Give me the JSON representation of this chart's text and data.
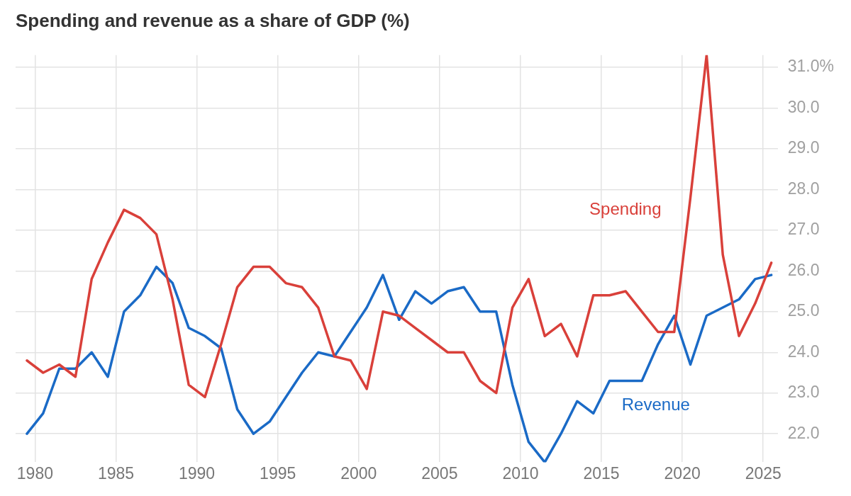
{
  "chart_data": {
    "type": "line",
    "title": "Spending and revenue as a share of GDP (%)",
    "x": [
      1979.5,
      1980.5,
      1981.5,
      1982.5,
      1983.5,
      1984.5,
      1985.5,
      1986.5,
      1987.5,
      1988.5,
      1989.5,
      1990.5,
      1991.5,
      1992.5,
      1993.5,
      1994.5,
      1995.5,
      1996.5,
      1997.5,
      1998.5,
      1999.5,
      2000.5,
      2001.5,
      2002.5,
      2003.5,
      2004.5,
      2005.5,
      2006.5,
      2007.5,
      2008.5,
      2009.5,
      2010.5,
      2011.5,
      2012.5,
      2013.5,
      2014.5,
      2015.5,
      2016.5,
      2017.5,
      2018.5,
      2019.5,
      2020.5,
      2021.5,
      2022.5,
      2023.5,
      2024.5,
      2025.5
    ],
    "series": [
      {
        "name": "Spending",
        "color": "#d9403a",
        "values": [
          23.8,
          23.5,
          23.7,
          23.4,
          25.8,
          26.7,
          27.5,
          27.3,
          26.9,
          25.3,
          23.2,
          22.9,
          24.2,
          25.6,
          26.1,
          26.1,
          25.7,
          25.6,
          25.1,
          23.9,
          23.8,
          23.1,
          25.0,
          24.9,
          24.6,
          24.3,
          24.0,
          24.0,
          23.3,
          23.0,
          25.1,
          25.8,
          24.4,
          24.7,
          23.9,
          25.4,
          25.4,
          25.5,
          25.0,
          24.5,
          24.5,
          27.8,
          31.3,
          26.4,
          24.4,
          25.2,
          26.2
        ]
      },
      {
        "name": "Revenue",
        "color": "#1a6ac6",
        "values": [
          22.0,
          22.5,
          23.6,
          23.6,
          24.0,
          23.4,
          25.0,
          25.4,
          26.1,
          25.7,
          24.6,
          24.4,
          24.1,
          22.6,
          22.0,
          22.3,
          22.9,
          23.5,
          24.0,
          23.9,
          24.5,
          25.1,
          25.9,
          24.8,
          25.5,
          25.2,
          25.5,
          25.6,
          25.0,
          25.0,
          23.2,
          21.8,
          21.3,
          22.0,
          22.8,
          22.5,
          23.3,
          23.3,
          23.3,
          24.2,
          24.9,
          23.7,
          24.9,
          25.1,
          25.3,
          25.8,
          25.9
        ]
      }
    ],
    "xlim": [
      1978.8,
      2025.9
    ],
    "xticks": [
      1980,
      1985,
      1990,
      1995,
      2000,
      2005,
      2010,
      2015,
      2020,
      2025
    ],
    "ylim": [
      21.3,
      31.3
    ],
    "yticks": [
      {
        "value": 22,
        "label": "22.0"
      },
      {
        "value": 23,
        "label": "23.0"
      },
      {
        "value": 24,
        "label": "24.0"
      },
      {
        "value": 25,
        "label": "25.0"
      },
      {
        "value": 26,
        "label": "26.0"
      },
      {
        "value": 27,
        "label": "27.0"
      },
      {
        "value": 28,
        "label": "28.0"
      },
      {
        "value": 29,
        "label": "29.0"
      },
      {
        "value": 30,
        "label": "30.0"
      },
      {
        "value": 31,
        "label": "31.0%"
      }
    ],
    "grid": true,
    "legend": false,
    "marker": "none",
    "line_style": "solid"
  }
}
